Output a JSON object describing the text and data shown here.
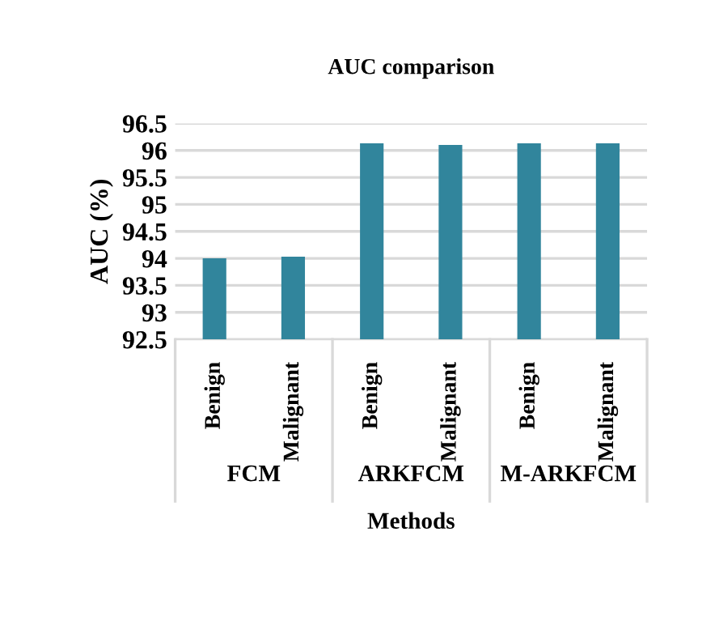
{
  "chart_data": {
    "type": "bar",
    "title": "AUC comparison",
    "xlabel": "Methods",
    "ylabel": "AUC (%)",
    "categories": [
      "Benign",
      "Malignant",
      "Benign",
      "Malignant",
      "Benign",
      "Malignant"
    ],
    "values": [
      94.0,
      94.03,
      96.13,
      96.1,
      96.13,
      96.13
    ],
    "color": "#31859c",
    "ylim": [
      92.5,
      96.5
    ],
    "yticks": [
      92.5,
      93,
      93.5,
      94,
      94.5,
      95,
      95.5,
      96,
      96.5
    ],
    "grid": "y",
    "legend": false,
    "annotations": [
      "FCM",
      "ARKFCM",
      "M-ARKFCM"
    ]
  }
}
